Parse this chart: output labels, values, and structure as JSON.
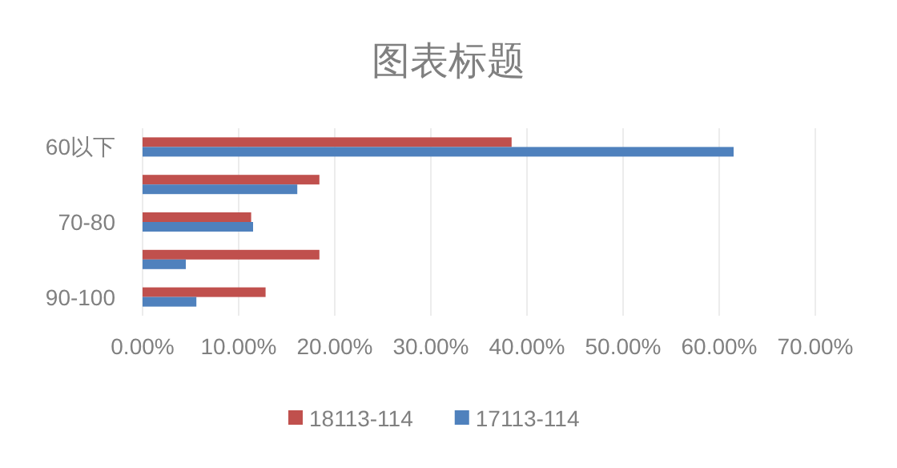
{
  "chart_data": {
    "type": "bar",
    "title": "图表标题",
    "orientation": "horizontal",
    "categories": [
      "60以下",
      null,
      "70-80",
      null,
      "90-100"
    ],
    "series": [
      {
        "name": "18113-114",
        "color": "#c0504d",
        "values": [
          38.4,
          18.4,
          11.3,
          18.4,
          12.8
        ]
      },
      {
        "name": "17113-114",
        "color": "#4f81bd",
        "values": [
          61.5,
          16.1,
          11.5,
          4.5,
          5.6
        ]
      }
    ],
    "xlim": [
      0,
      70
    ],
    "xticks": [
      {
        "value": 0,
        "label": "0.00%"
      },
      {
        "value": 10,
        "label": "10.00%"
      },
      {
        "value": 20,
        "label": "20.00%"
      },
      {
        "value": 30,
        "label": "30.00%"
      },
      {
        "value": 40,
        "label": "40.00%"
      },
      {
        "value": 50,
        "label": "50.00%"
      },
      {
        "value": 60,
        "label": "60.00%"
      },
      {
        "value": 70,
        "label": "70.00%"
      }
    ],
    "grid": "x",
    "legend": "bottom"
  }
}
